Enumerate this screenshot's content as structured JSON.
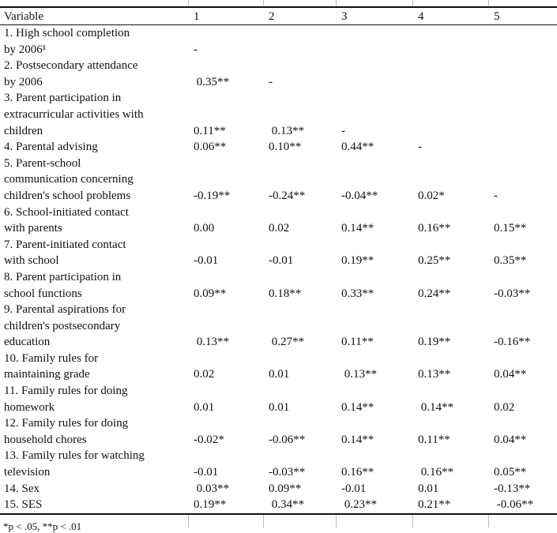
{
  "table": {
    "headers": [
      "Variable",
      "1",
      "2",
      "3",
      "4",
      "5"
    ],
    "rows": [
      {
        "label": "1.  High school completion\nby 2006¹",
        "values": [
          "-",
          "",
          "",
          "",
          ""
        ]
      },
      {
        "label": "2.  Postsecondary attendance\nby 2006",
        "values": [
          " 0.35**",
          "-",
          "",
          "",
          ""
        ]
      },
      {
        "label": "3.  Parent participation in\nextracurricular activities with\nchildren",
        "values": [
          "0.11**",
          " 0.13**",
          "-",
          "",
          ""
        ]
      },
      {
        "label": "4.  Parental advising",
        "values": [
          "0.06**",
          "0.10**",
          "0.44**",
          "-",
          ""
        ]
      },
      {
        "label": "5.  Parent-school\ncommunication concerning\nchildren's school problems",
        "values": [
          "-0.19**",
          "-0.24**",
          "-0.04**",
          "0.02*",
          "-"
        ]
      },
      {
        "label": "6.  School-initiated contact\nwith parents",
        "values": [
          "0.00",
          "0.02",
          "0.14**",
          "0.16**",
          "0.15**"
        ]
      },
      {
        "label": "7.  Parent-initiated contact\nwith school",
        "values": [
          "-0.01",
          "-0.01",
          "0.19**",
          "0.25**",
          "0.35**"
        ]
      },
      {
        "label": "8.  Parent participation in\nschool functions",
        "values": [
          "0.09**",
          "0.18**",
          "0.33**",
          "0.24**",
          "-0.03**"
        ]
      },
      {
        "label": "9.  Parental aspirations for\nchildren's postsecondary\neducation",
        "values": [
          " 0.13**",
          " 0.27**",
          "0.11**",
          "0.19**",
          "-0.16**"
        ]
      },
      {
        "label": "10.  Family rules for\nmaintaining grade",
        "values": [
          "0.02",
          "0.01",
          " 0.13**",
          "0.13**",
          "0.04**"
        ]
      },
      {
        "label": "11.  Family rules for doing\nhomework",
        "values": [
          "0.01",
          "0.01",
          "0.14**",
          " 0.14**",
          "0.02"
        ]
      },
      {
        "label": "12.  Family rules for doing\nhousehold chores",
        "values": [
          "-0.02*",
          "-0.06**",
          "0.14**",
          "0.11**",
          "0.04**"
        ]
      },
      {
        "label": "13.  Family rules for watching\ntelevision",
        "values": [
          "-0.01",
          "-0.03**",
          "0.16**",
          " 0.16**",
          "0.05**"
        ]
      },
      {
        "label": "14.  Sex",
        "values": [
          " 0.03**",
          "0.09**",
          "-0.01",
          "0.01",
          "-0.13**"
        ]
      },
      {
        "label": "15.  SES",
        "values": [
          "0.19**",
          " 0.34**",
          " 0.23**",
          "0.21**",
          " -0.06**"
        ]
      }
    ]
  },
  "footnote": "*p < .05, **p < .01"
}
